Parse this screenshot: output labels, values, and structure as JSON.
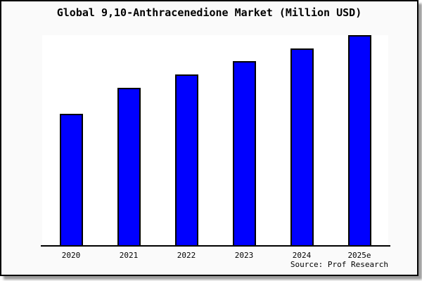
{
  "window": {
    "background": "#fafafa",
    "frame_border_color": "#000000",
    "shadow_color": "#9b9b9b",
    "plot_background": "#ffffff"
  },
  "chart_data": {
    "type": "bar",
    "title": "Global 9,10-Anthracenedione Market (Million USD)",
    "categories": [
      "2020",
      "2021",
      "2022",
      "2023",
      "2024",
      "2025e"
    ],
    "values": [
      189,
      226,
      245,
      264,
      282,
      301
    ],
    "values_note": "no y-axis or value labels shown in image; values are relative bar heights estimated from pixels",
    "xlabel": "",
    "ylabel": "",
    "grid": false,
    "legend": false,
    "bar_color": "#0000ff",
    "bar_border_color": "#000000",
    "axis_color": "#000000"
  },
  "footer": {
    "source": "Source: Prof Research"
  }
}
